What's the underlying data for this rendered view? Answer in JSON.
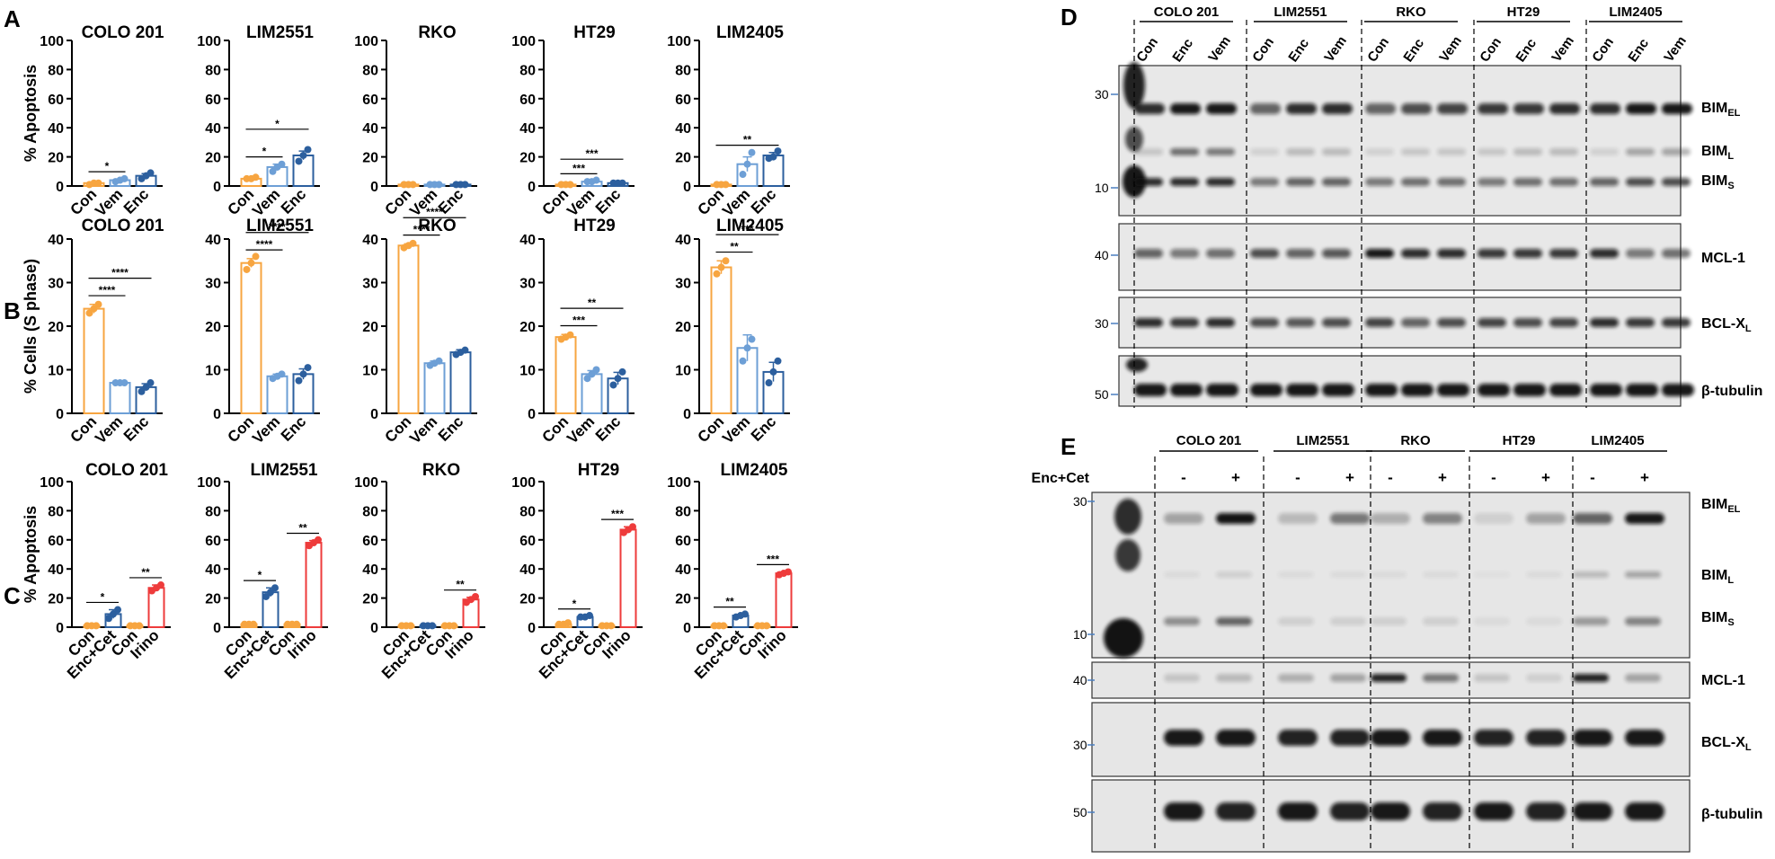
{
  "figure_letters": {
    "A": "A",
    "B": "B",
    "C": "C",
    "D": "D",
    "E": "E"
  },
  "colors": {
    "con": "#f7a540",
    "vem": "#6d9fd6",
    "enc": "#2c5f9e",
    "enccet": "#2c5f9e",
    "irino": "#ee3b3b",
    "axis": "#000000"
  },
  "chart_data": [
    {
      "panel": "A",
      "type": "bar",
      "title": "COLO 201",
      "ylabel": "% Apoptosis",
      "ylim": [
        0,
        100
      ],
      "yticks": [
        0,
        20,
        40,
        60,
        80,
        100
      ],
      "categories": [
        "Con",
        "Vem",
        "Enc"
      ],
      "values": [
        2,
        4,
        7
      ],
      "errors": [
        0.5,
        0.8,
        1.5
      ],
      "points": [
        [
          1,
          2,
          2
        ],
        [
          3,
          4,
          5
        ],
        [
          5,
          7,
          9
        ]
      ],
      "series_colors": [
        "con",
        "vem",
        "enc"
      ],
      "sig": [
        {
          "from": 0,
          "to": 1,
          "label": "*"
        }
      ]
    },
    {
      "panel": "A",
      "type": "bar",
      "title": "LIM2551",
      "ylabel": "",
      "ylim": [
        0,
        100
      ],
      "yticks": [
        0,
        20,
        40,
        60,
        80,
        100
      ],
      "categories": [
        "Con",
        "Vem",
        "Enc"
      ],
      "values": [
        5,
        13,
        21
      ],
      "errors": [
        0.5,
        2,
        3
      ],
      "points": [
        [
          5,
          5,
          6
        ],
        [
          10,
          13,
          15
        ],
        [
          17,
          21,
          25
        ]
      ],
      "series_colors": [
        "con",
        "vem",
        "enc"
      ],
      "sig": [
        {
          "from": 0,
          "to": 1,
          "label": "*"
        },
        {
          "from": 0,
          "to": 2,
          "label": "*"
        }
      ]
    },
    {
      "panel": "A",
      "type": "bar",
      "title": "RKO",
      "ylabel": "",
      "ylim": [
        0,
        100
      ],
      "yticks": [
        0,
        20,
        40,
        60,
        80,
        100
      ],
      "categories": [
        "Con",
        "Vem",
        "Enc"
      ],
      "values": [
        1,
        1,
        1
      ],
      "errors": [
        0.2,
        0.2,
        0.2
      ],
      "points": [
        [
          1,
          1,
          1
        ],
        [
          1,
          1,
          1
        ],
        [
          1,
          1,
          1
        ]
      ],
      "series_colors": [
        "con",
        "vem",
        "enc"
      ],
      "sig": []
    },
    {
      "panel": "A",
      "type": "bar",
      "title": "HT29",
      "ylabel": "",
      "ylim": [
        0,
        100
      ],
      "yticks": [
        0,
        20,
        40,
        60,
        80,
        100
      ],
      "categories": [
        "Con",
        "Vem",
        "Enc"
      ],
      "values": [
        1,
        3,
        2
      ],
      "errors": [
        0.2,
        0.4,
        0.3
      ],
      "points": [
        [
          1,
          1,
          1
        ],
        [
          3,
          3,
          4
        ],
        [
          2,
          2,
          2
        ]
      ],
      "series_colors": [
        "con",
        "vem",
        "enc"
      ],
      "sig": [
        {
          "from": 0,
          "to": 1,
          "label": "***"
        },
        {
          "from": 0,
          "to": 2,
          "label": "***"
        }
      ]
    },
    {
      "panel": "A",
      "type": "bar",
      "title": "LIM2405",
      "ylabel": "",
      "ylim": [
        0,
        100
      ],
      "yticks": [
        0,
        20,
        40,
        60,
        80,
        100
      ],
      "categories": [
        "Con",
        "Vem",
        "Enc"
      ],
      "values": [
        1,
        15,
        21
      ],
      "errors": [
        0.3,
        5,
        2
      ],
      "points": [
        [
          1,
          1,
          1
        ],
        [
          8,
          15,
          23
        ],
        [
          19,
          20,
          24
        ]
      ],
      "series_colors": [
        "con",
        "vem",
        "enc"
      ],
      "sig": [
        {
          "from": 0,
          "to": 2,
          "label": "**"
        }
      ]
    },
    {
      "panel": "B",
      "type": "bar",
      "title": "COLO 201",
      "ylabel": "% Cells (S phase)",
      "ylim": [
        0,
        40
      ],
      "yticks": [
        0,
        10,
        20,
        30,
        40
      ],
      "categories": [
        "Con",
        "Vem",
        "Enc"
      ],
      "values": [
        24,
        7,
        6
      ],
      "errors": [
        1,
        0.3,
        0.8
      ],
      "points": [
        [
          23,
          24,
          25
        ],
        [
          7,
          7,
          7
        ],
        [
          5,
          6,
          7
        ]
      ],
      "series_colors": [
        "con",
        "vem",
        "enc"
      ],
      "sig": [
        {
          "from": 0,
          "to": 1,
          "label": "****"
        },
        {
          "from": 0,
          "to": 2,
          "label": "****"
        }
      ]
    },
    {
      "panel": "B",
      "type": "bar",
      "title": "LIM2551",
      "ylabel": "",
      "ylim": [
        0,
        40
      ],
      "yticks": [
        0,
        10,
        20,
        30,
        40
      ],
      "categories": [
        "Con",
        "Vem",
        "Enc"
      ],
      "values": [
        34.5,
        8.5,
        9
      ],
      "errors": [
        1,
        0.5,
        1.2
      ],
      "points": [
        [
          33,
          34.5,
          36
        ],
        [
          8,
          8.5,
          9
        ],
        [
          7.5,
          9,
          10.5
        ]
      ],
      "series_colors": [
        "con",
        "vem",
        "enc"
      ],
      "sig": [
        {
          "from": 0,
          "to": 1,
          "label": "****"
        },
        {
          "from": 0,
          "to": 2,
          "label": "****"
        }
      ]
    },
    {
      "panel": "B",
      "type": "bar",
      "title": "RKO",
      "ylabel": "",
      "ylim": [
        0,
        40
      ],
      "yticks": [
        0,
        10,
        20,
        30,
        40
      ],
      "categories": [
        "Con",
        "Vem",
        "Enc"
      ],
      "values": [
        38.5,
        11.5,
        14
      ],
      "errors": [
        0.4,
        0.5,
        0.6
      ],
      "points": [
        [
          38,
          38.5,
          39
        ],
        [
          11,
          11.5,
          12
        ],
        [
          13.5,
          14,
          14.5
        ]
      ],
      "series_colors": [
        "con",
        "vem",
        "enc"
      ],
      "sig": [
        {
          "from": 0,
          "to": 1,
          "label": "****"
        },
        {
          "from": 0,
          "to": 2,
          "label": "****"
        }
      ]
    },
    {
      "panel": "B",
      "type": "bar",
      "title": "HT29",
      "ylabel": "",
      "ylim": [
        0,
        40
      ],
      "yticks": [
        0,
        10,
        20,
        30,
        40
      ],
      "categories": [
        "Con",
        "Vem",
        "Enc"
      ],
      "values": [
        17.5,
        9,
        8
      ],
      "errors": [
        0.6,
        0.8,
        1.4
      ],
      "points": [
        [
          17,
          17.5,
          18
        ],
        [
          8,
          9,
          10
        ],
        [
          6.5,
          8,
          9.5
        ]
      ],
      "series_colors": [
        "con",
        "vem",
        "enc"
      ],
      "sig": [
        {
          "from": 0,
          "to": 1,
          "label": "***"
        },
        {
          "from": 0,
          "to": 2,
          "label": "**"
        }
      ]
    },
    {
      "panel": "B",
      "type": "bar",
      "title": "LIM2405",
      "ylabel": "",
      "ylim": [
        0,
        40
      ],
      "yticks": [
        0,
        10,
        20,
        30,
        40
      ],
      "categories": [
        "Con",
        "Vem",
        "Enc"
      ],
      "values": [
        33.5,
        15,
        9.5
      ],
      "errors": [
        1.5,
        3,
        2.2
      ],
      "points": [
        [
          32,
          33.5,
          35
        ],
        [
          12,
          15,
          17
        ],
        [
          7,
          9.5,
          12
        ]
      ],
      "series_colors": [
        "con",
        "vem",
        "enc"
      ],
      "sig": [
        {
          "from": 0,
          "to": 1,
          "label": "**"
        },
        {
          "from": 0,
          "to": 2,
          "label": "***"
        }
      ]
    },
    {
      "panel": "C",
      "type": "bar",
      "title": "COLO 201",
      "ylabel": "% Apoptosis",
      "ylim": [
        0,
        100
      ],
      "yticks": [
        0,
        20,
        40,
        60,
        80,
        100
      ],
      "categories": [
        "Con",
        "Enc+Cet",
        "Con",
        "Irino"
      ],
      "values": [
        1,
        9,
        1,
        27
      ],
      "errors": [
        0.3,
        3,
        0.3,
        2
      ],
      "points": [
        [
          1,
          1,
          1
        ],
        [
          6,
          9,
          12
        ],
        [
          1,
          1,
          1
        ],
        [
          25,
          27,
          29
        ]
      ],
      "series_colors": [
        "con",
        "enccet",
        "con",
        "irino"
      ],
      "sig": [
        {
          "from": 0,
          "to": 1,
          "label": "*"
        },
        {
          "from": 2,
          "to": 3,
          "label": "**"
        }
      ]
    },
    {
      "panel": "C",
      "type": "bar",
      "title": "LIM2551",
      "ylabel": "",
      "ylim": [
        0,
        100
      ],
      "yticks": [
        0,
        20,
        40,
        60,
        80,
        100
      ],
      "categories": [
        "Con",
        "Enc+Cet",
        "Con",
        "Irino"
      ],
      "values": [
        2,
        24,
        2,
        58
      ],
      "errors": [
        0.3,
        3,
        0.3,
        1.5
      ],
      "points": [
        [
          2,
          2,
          2
        ],
        [
          21,
          24,
          27
        ],
        [
          2,
          2,
          2
        ],
        [
          56,
          58,
          60
        ]
      ],
      "series_colors": [
        "con",
        "enccet",
        "con",
        "irino"
      ],
      "sig": [
        {
          "from": 0,
          "to": 1,
          "label": "*"
        },
        {
          "from": 2,
          "to": 3,
          "label": "**"
        }
      ]
    },
    {
      "panel": "C",
      "type": "bar",
      "title": "RKO",
      "ylabel": "",
      "ylim": [
        0,
        100
      ],
      "yticks": [
        0,
        20,
        40,
        60,
        80,
        100
      ],
      "categories": [
        "Con",
        "Enc+Cet",
        "Con",
        "Irino"
      ],
      "values": [
        1,
        1,
        1,
        19
      ],
      "errors": [
        0.2,
        0.2,
        0.2,
        1.5
      ],
      "points": [
        [
          1,
          1,
          1
        ],
        [
          1,
          1,
          1
        ],
        [
          1,
          1,
          1
        ],
        [
          17,
          19,
          21
        ]
      ],
      "series_colors": [
        "con",
        "enccet",
        "con",
        "irino"
      ],
      "sig": [
        {
          "from": 2,
          "to": 3,
          "label": "**"
        }
      ]
    },
    {
      "panel": "C",
      "type": "bar",
      "title": "HT29",
      "ylabel": "",
      "ylim": [
        0,
        100
      ],
      "yticks": [
        0,
        20,
        40,
        60,
        80,
        100
      ],
      "categories": [
        "Con",
        "Enc+Cet",
        "Con",
        "Irino"
      ],
      "values": [
        2,
        7,
        1,
        67
      ],
      "errors": [
        0.5,
        0.5,
        0.2,
        2
      ],
      "points": [
        [
          2,
          2,
          3
        ],
        [
          7,
          7,
          8
        ],
        [
          1,
          1,
          1
        ],
        [
          65,
          67,
          69
        ]
      ],
      "series_colors": [
        "con",
        "enccet",
        "con",
        "irino"
      ],
      "sig": [
        {
          "from": 0,
          "to": 1,
          "label": "*"
        },
        {
          "from": 2,
          "to": 3,
          "label": "***"
        }
      ]
    },
    {
      "panel": "C",
      "type": "bar",
      "title": "LIM2405",
      "ylabel": "",
      "ylim": [
        0,
        100
      ],
      "yticks": [
        0,
        20,
        40,
        60,
        80,
        100
      ],
      "categories": [
        "Con",
        "Enc+Cet",
        "Con",
        "Irino"
      ],
      "values": [
        1,
        8,
        1,
        37
      ],
      "errors": [
        0.2,
        0.8,
        0.2,
        1
      ],
      "points": [
        [
          1,
          1,
          1
        ],
        [
          7,
          8,
          9
        ],
        [
          1,
          1,
          1
        ],
        [
          36,
          37,
          38
        ]
      ],
      "series_colors": [
        "con",
        "enccet",
        "con",
        "irino"
      ],
      "sig": [
        {
          "from": 0,
          "to": 1,
          "label": "**"
        },
        {
          "from": 2,
          "to": 3,
          "label": "***"
        }
      ]
    }
  ],
  "blot_D": {
    "cell_lines": [
      "COLO 201",
      "LIM2551",
      "RKO",
      "HT29",
      "LIM2405"
    ],
    "lane_labels": [
      "Con",
      "Enc",
      "Vem"
    ],
    "markers": {
      "m30": "30",
      "m10": "10",
      "m40": "40",
      "m30b": "30",
      "m50": "50"
    },
    "proteins": {
      "bim": "BIM",
      "el": "EL",
      "l": "L",
      "s": "S",
      "mcl1": "MCL-1",
      "bclx": "BCL-X",
      "bclx_sub": "L",
      "tubulin": "β-tubulin"
    }
  },
  "blot_E": {
    "cell_lines": [
      "COLO 201",
      "LIM2551",
      "RKO",
      "HT29",
      "LIM2405"
    ],
    "treatment_label": "Enc+Cet",
    "lane_signs": [
      "-",
      "+"
    ],
    "markers": {
      "m30": "30",
      "m10": "10",
      "m40": "40",
      "m30b": "30",
      "m50": "50"
    },
    "proteins": {
      "bim": "BIM",
      "el": "EL",
      "l": "L",
      "s": "S",
      "mcl1": "MCL-1",
      "bclx": "BCL-X",
      "bclx_sub": "L",
      "tubulin": "β-tubulin"
    }
  }
}
